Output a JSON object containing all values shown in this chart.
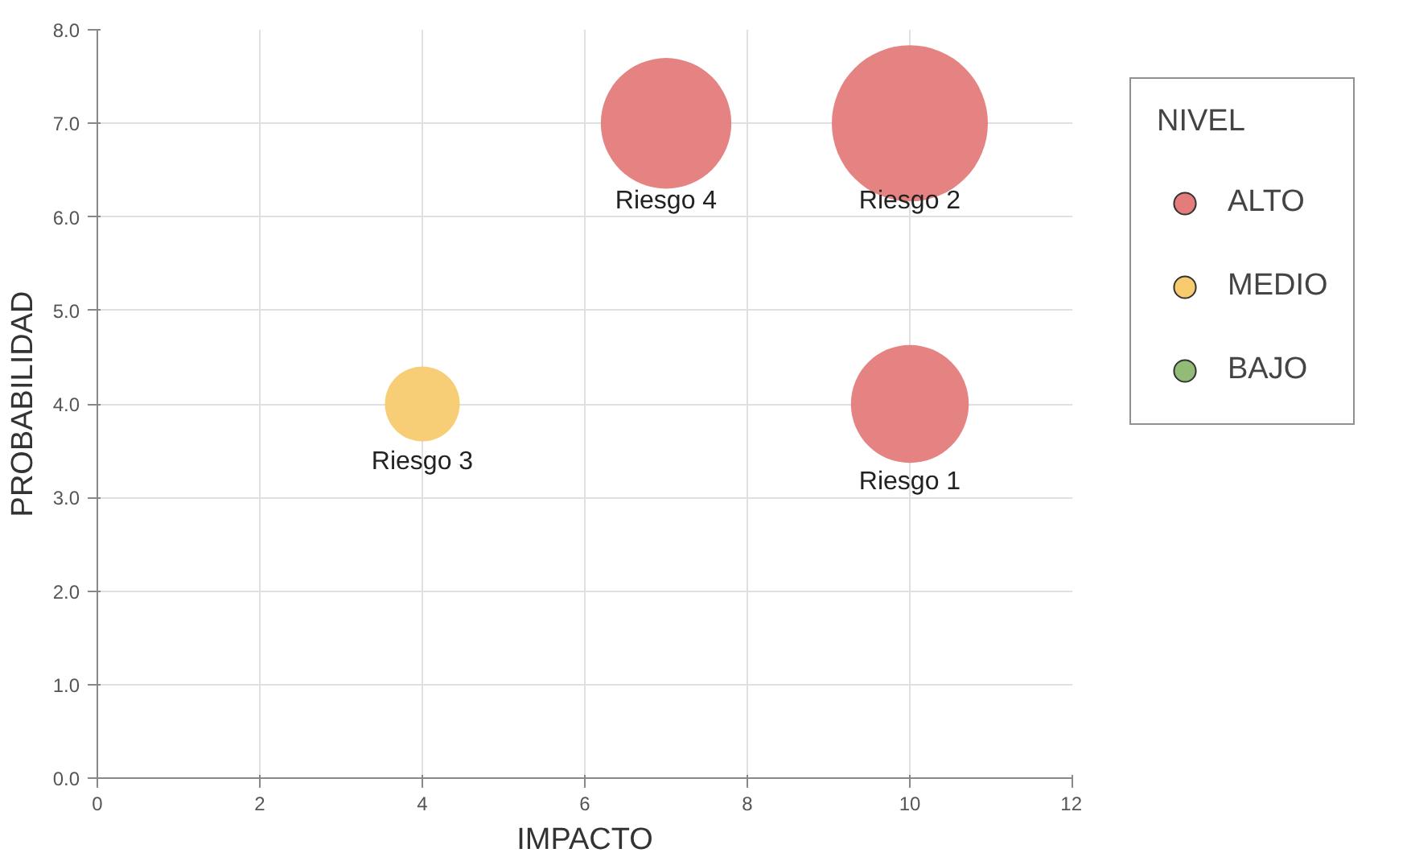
{
  "chart_data": {
    "type": "bubble",
    "xlabel": "IMPACTO",
    "ylabel": "PROBABILIDAD",
    "legend_title": "NIVEL",
    "xlim": [
      0,
      12
    ],
    "xticks": [
      0,
      2,
      4,
      6,
      8,
      10,
      12
    ],
    "ylim": [
      0,
      8
    ],
    "yticks": [
      {
        "value": 0,
        "label": "0.0"
      },
      {
        "value": 1,
        "label": "1.0"
      },
      {
        "value": 2,
        "label": "2.0"
      },
      {
        "value": 3,
        "label": "3.0"
      },
      {
        "value": 4,
        "label": "4.0"
      },
      {
        "value": 5,
        "label": "5.0"
      },
      {
        "value": 6,
        "label": "6.0"
      },
      {
        "value": 7,
        "label": "7.0"
      },
      {
        "value": 8,
        "label": "8.0"
      }
    ],
    "grid": true,
    "legend": "right",
    "marker": "circle",
    "series": [
      {
        "name": "ALTO",
        "color": "#e47c7c",
        "x": [
          10,
          10,
          7
        ],
        "values": [
          4,
          7,
          7
        ],
        "sizes": [
          0.57,
          1,
          0.7
        ]
      },
      {
        "name": "MEDIO",
        "color": "#f7cb6e",
        "x": [
          4
        ],
        "values": [
          4
        ],
        "sizes": [
          0.23
        ]
      },
      {
        "name": "BAJO",
        "color": "#93bb78"
      }
    ],
    "annotations": [
      {
        "text": "Riesgo 1",
        "x": 10,
        "y": 4
      },
      {
        "text": "Riesgo 2",
        "x": 10,
        "y": 7
      },
      {
        "text": "Riesgo 3",
        "x": 4,
        "y": 4
      },
      {
        "text": "Riesgo 4",
        "x": 7,
        "y": 7
      }
    ]
  }
}
